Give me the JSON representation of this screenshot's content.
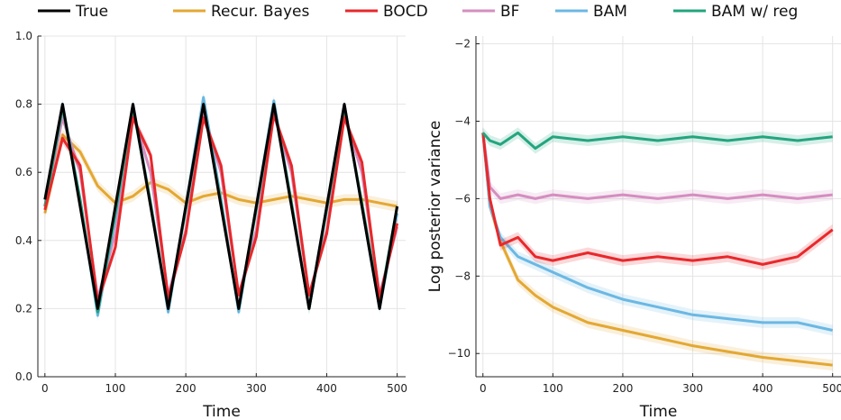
{
  "legend": {
    "entries": [
      {
        "label": "True",
        "color": "#000000"
      },
      {
        "label": "Recur. Bayes",
        "color": "#E3A833"
      },
      {
        "label": "BOCD",
        "color": "#E8282B"
      },
      {
        "label": "BF",
        "color": "#D58EC0"
      },
      {
        "label": "BAM",
        "color": "#6BB8E3"
      },
      {
        "label": "BAM w/ reg",
        "color": "#23A57E"
      }
    ],
    "placement": "top-center"
  },
  "chart_data": [
    {
      "type": "line",
      "xlabel": "Time",
      "ylabel": "",
      "xlim": [
        -10,
        512
      ],
      "ylim": [
        0.0,
        1.0
      ],
      "xticks": [
        0,
        100,
        200,
        300,
        400,
        500
      ],
      "xtick_labels": [
        "0",
        "100",
        "200",
        "300",
        "400",
        "500"
      ],
      "yticks": [
        0.0,
        0.2,
        0.4,
        0.6,
        0.8,
        1.0
      ],
      "ytick_labels": [
        "0.0",
        "0.2",
        "0.4",
        "0.6",
        "0.8",
        "1.0"
      ],
      "grid": true,
      "x": [
        0,
        25,
        50,
        75,
        100,
        125,
        150,
        175,
        200,
        225,
        250,
        275,
        300,
        325,
        350,
        375,
        400,
        425,
        450,
        475,
        500
      ],
      "series": [
        {
          "name": "True",
          "color": "#000000",
          "values": [
            0.52,
            0.8,
            0.5,
            0.2,
            0.5,
            0.8,
            0.5,
            0.2,
            0.5,
            0.8,
            0.5,
            0.2,
            0.5,
            0.8,
            0.5,
            0.2,
            0.5,
            0.8,
            0.5,
            0.2,
            0.5
          ]
        },
        {
          "name": "Recur. Bayes",
          "color": "#E3A833",
          "values": [
            0.48,
            0.71,
            0.66,
            0.56,
            0.51,
            0.53,
            0.57,
            0.55,
            0.51,
            0.53,
            0.54,
            0.52,
            0.51,
            0.52,
            0.53,
            0.52,
            0.51,
            0.52,
            0.52,
            0.51,
            0.5
          ]
        },
        {
          "name": "BOCD",
          "color": "#E8282B",
          "values": [
            0.49,
            0.7,
            0.62,
            0.22,
            0.38,
            0.76,
            0.65,
            0.23,
            0.42,
            0.76,
            0.62,
            0.24,
            0.41,
            0.77,
            0.62,
            0.24,
            0.42,
            0.76,
            0.63,
            0.23,
            0.45
          ]
        },
        {
          "name": "BF",
          "color": "#D58EC0",
          "values": [
            0.5,
            0.76,
            0.6,
            0.23,
            0.42,
            0.77,
            0.6,
            0.24,
            0.43,
            0.77,
            0.6,
            0.24,
            0.43,
            0.77,
            0.6,
            0.24,
            0.43,
            0.77,
            0.6,
            0.24,
            0.44
          ]
        },
        {
          "name": "BAM",
          "color": "#6BB8E3",
          "values": [
            0.5,
            0.8,
            0.52,
            0.18,
            0.47,
            0.8,
            0.51,
            0.19,
            0.5,
            0.82,
            0.52,
            0.19,
            0.5,
            0.81,
            0.51,
            0.2,
            0.5,
            0.8,
            0.5,
            0.2,
            0.48
          ]
        },
        {
          "name": "BAM w/ reg",
          "color": "#23A57E",
          "values": [
            0.5,
            0.79,
            0.52,
            0.19,
            0.48,
            0.79,
            0.51,
            0.2,
            0.49,
            0.8,
            0.51,
            0.2,
            0.49,
            0.8,
            0.51,
            0.2,
            0.49,
            0.79,
            0.51,
            0.21,
            0.5
          ]
        }
      ]
    },
    {
      "type": "line",
      "xlabel": "Time",
      "ylabel": "Log posterior variance",
      "xlim": [
        -10,
        512
      ],
      "ylim": [
        -10.6,
        -1.8
      ],
      "xticks": [
        0,
        100,
        200,
        300,
        400,
        500
      ],
      "xtick_labels": [
        "0",
        "100",
        "200",
        "300",
        "400",
        "500"
      ],
      "yticks": [
        -10,
        -8,
        -6,
        -4,
        -2
      ],
      "ytick_labels": [
        "−10",
        "−8",
        "−6",
        "−4",
        "−2"
      ],
      "grid": true,
      "x": [
        0,
        10,
        25,
        50,
        75,
        100,
        150,
        200,
        250,
        300,
        350,
        400,
        450,
        500
      ],
      "series": [
        {
          "name": "Recur. Bayes",
          "color": "#E3A833",
          "values": [
            -4.3,
            -6.2,
            -7.1,
            -8.1,
            -8.5,
            -8.8,
            -9.2,
            -9.4,
            -9.6,
            -9.8,
            -9.95,
            -10.1,
            -10.2,
            -10.3
          ]
        },
        {
          "name": "BOCD",
          "color": "#E8282B",
          "values": [
            -4.3,
            -6.0,
            -7.2,
            -7.0,
            -7.5,
            -7.6,
            -7.4,
            -7.6,
            -7.5,
            -7.6,
            -7.5,
            -7.7,
            -7.5,
            -6.8
          ]
        },
        {
          "name": "BF",
          "color": "#D58EC0",
          "values": [
            -4.3,
            -5.7,
            -6.0,
            -5.9,
            -6.0,
            -5.9,
            -6.0,
            -5.9,
            -6.0,
            -5.9,
            -6.0,
            -5.9,
            -6.0,
            -5.9
          ]
        },
        {
          "name": "BAM",
          "color": "#6BB8E3",
          "values": [
            -4.3,
            -6.2,
            -7.0,
            -7.5,
            -7.7,
            -7.9,
            -8.3,
            -8.6,
            -8.8,
            -9.0,
            -9.1,
            -9.2,
            -9.2,
            -9.4
          ]
        },
        {
          "name": "BAM w/ reg",
          "color": "#23A57E",
          "values": [
            -4.3,
            -4.5,
            -4.6,
            -4.3,
            -4.7,
            -4.4,
            -4.5,
            -4.4,
            -4.5,
            -4.4,
            -4.5,
            -4.4,
            -4.5,
            -4.4
          ]
        }
      ]
    }
  ]
}
